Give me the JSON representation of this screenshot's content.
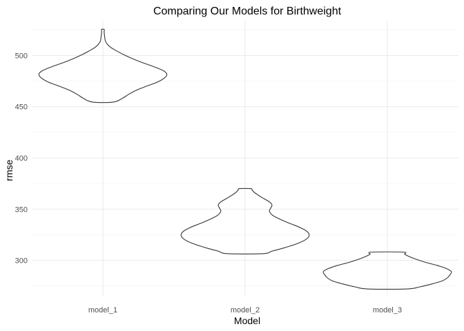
{
  "chart_data": {
    "type": "violin",
    "title": "Comparing Our Models for Birthweight",
    "xlabel": "Model",
    "ylabel": "rmse",
    "categories": [
      "model_1",
      "model_2",
      "model_3"
    ],
    "ylim": [
      266,
      534
    ],
    "yticks": [
      300,
      350,
      400,
      450,
      500
    ],
    "grid": true,
    "violins": [
      {
        "category": "model_1",
        "profile": [
          [
            454.5,
            0.16
          ],
          [
            458,
            0.3
          ],
          [
            462,
            0.4
          ],
          [
            466,
            0.52
          ],
          [
            470,
            0.68
          ],
          [
            474,
            0.85
          ],
          [
            478,
            0.96
          ],
          [
            481.5,
            1.0
          ],
          [
            485,
            0.95
          ],
          [
            489,
            0.8
          ],
          [
            493,
            0.62
          ],
          [
            497,
            0.46
          ],
          [
            501,
            0.32
          ],
          [
            505,
            0.2
          ],
          [
            508,
            0.12
          ],
          [
            511,
            0.07
          ],
          [
            514,
            0.04
          ],
          [
            517,
            0.03
          ],
          [
            520,
            0.025
          ],
          [
            523,
            0.02
          ],
          [
            525.5,
            0.02
          ]
        ]
      },
      {
        "category": "model_2",
        "profile": [
          [
            306.5,
            0.28
          ],
          [
            309,
            0.42
          ],
          [
            312,
            0.6
          ],
          [
            316,
            0.8
          ],
          [
            320,
            0.94
          ],
          [
            324,
            1.0
          ],
          [
            328,
            0.97
          ],
          [
            332,
            0.86
          ],
          [
            336,
            0.7
          ],
          [
            340,
            0.55
          ],
          [
            344,
            0.43
          ],
          [
            348,
            0.38
          ],
          [
            351,
            0.4
          ],
          [
            354,
            0.42
          ],
          [
            357,
            0.38
          ],
          [
            360,
            0.3
          ],
          [
            363,
            0.22
          ],
          [
            366,
            0.15
          ],
          [
            368.5,
            0.11
          ],
          [
            370,
            0.09
          ]
        ]
      },
      {
        "category": "model_3",
        "profile": [
          [
            272,
            0.3
          ],
          [
            274,
            0.5
          ],
          [
            277,
            0.7
          ],
          [
            280,
            0.86
          ],
          [
            283,
            0.94
          ],
          [
            286,
            0.98
          ],
          [
            289,
            1.0
          ],
          [
            292,
            0.92
          ],
          [
            295,
            0.78
          ],
          [
            298,
            0.6
          ],
          [
            301,
            0.45
          ],
          [
            304,
            0.33
          ],
          [
            306,
            0.27
          ],
          [
            308,
            0.25
          ]
        ]
      }
    ]
  }
}
